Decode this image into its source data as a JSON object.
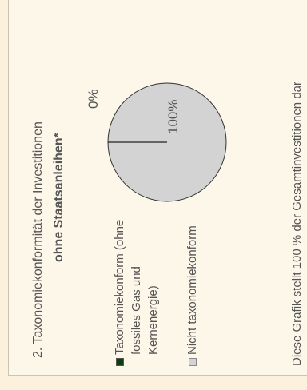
{
  "chart_data": {
    "type": "pie",
    "title": "2. Taxonomiekonformität der Investitionen",
    "subtitle": "ohne Staatsanleihen*",
    "slices": [
      {
        "label": "Taxonomiekonform (ohne fossiles Gas und Kernenergie)",
        "value": 0,
        "value_label": "0%",
        "color": "#0e3d12"
      },
      {
        "label": "Nicht taxonomiekonform",
        "value": 100,
        "value_label": "100%",
        "color": "#d3d3d3"
      }
    ],
    "legend_position": "left",
    "note": "Diese Grafik stellt 100 % der Gesamtinvestitionen dar"
  }
}
